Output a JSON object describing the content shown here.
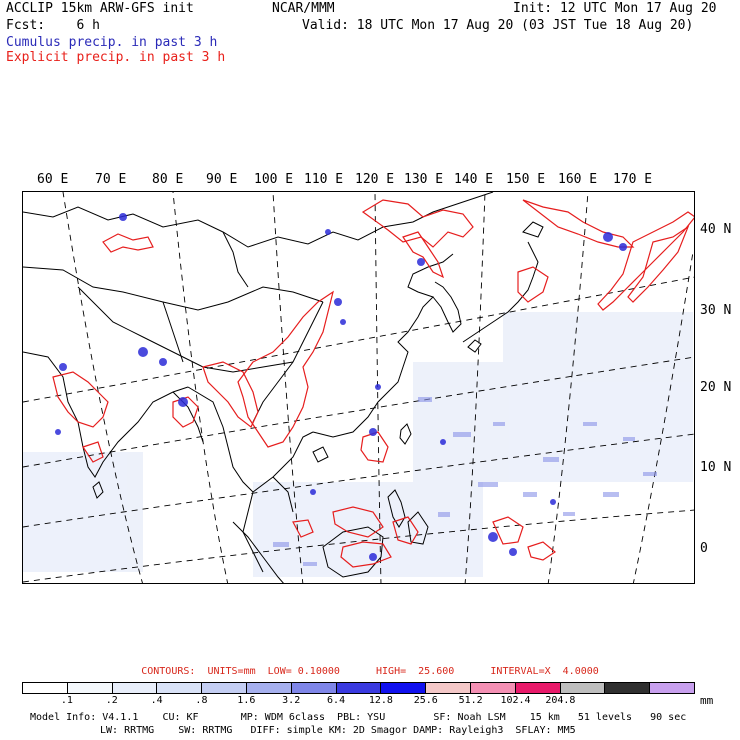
{
  "header": {
    "model_line": "ACCLIP 15km ARW-GFS init",
    "source": "NCAR/MMM",
    "init": "Init: 12 UTC Mon 17 Aug 20",
    "fcst": "Fcst:    6 h",
    "valid": "Valid: 18 UTC Mon 17 Aug 20 (03 JST Tue 18 Aug 20)",
    "legend_cumulus": "Cumulus precip. in past 3 h",
    "legend_explicit": "Explicit precip. in past 3 h"
  },
  "map": {
    "lon_labels": [
      "60 E",
      "70 E",
      "80 E",
      "90 E",
      "100 E",
      "110 E",
      "120 E",
      "130 E",
      "140 E",
      "150 E",
      "160 E",
      "170 E"
    ],
    "lat_labels": [
      "40 N",
      "30 N",
      "20 N",
      "10 N",
      "0"
    ],
    "colors": {
      "cumulus": "#2b2bd8",
      "explicit": "#e61e1e",
      "coast": "#000000",
      "grid": "#000000"
    }
  },
  "contours": "CONTOURS:  UNITS=mm  LOW= 0.10000      HIGH=  25.600      INTERVAL=X  4.0000",
  "colorbar": {
    "colors": [
      "#ffffff",
      "#f4f8fc",
      "#e8eefa",
      "#d9e2f7",
      "#c4cef3",
      "#a6b0ee",
      "#7f86e8",
      "#3a3ae0",
      "#1010ee",
      "#f4c8c8",
      "#f490b4",
      "#e81a6a",
      "#bebebe",
      "#303030",
      "#c8a0ee"
    ],
    "ticks": [
      ".1",
      ".2",
      ".4",
      ".8",
      "1.6",
      "3.2",
      "6.4",
      "12.8",
      "25.6",
      "51.2",
      "102.4",
      "204.8"
    ],
    "unit": "mm"
  },
  "model_info": {
    "line1": "Model Info: V4.1.1    CU: KF       MP: WDM 6class  PBL: YSU        SF: Noah LSM    15 km   51 levels   90 sec",
    "line2": "LW: RRTMG    SW: RRTMG   DIFF: simple KM: 2D Smagor DAMP: Rayleigh3  SFLAY: MM5"
  }
}
